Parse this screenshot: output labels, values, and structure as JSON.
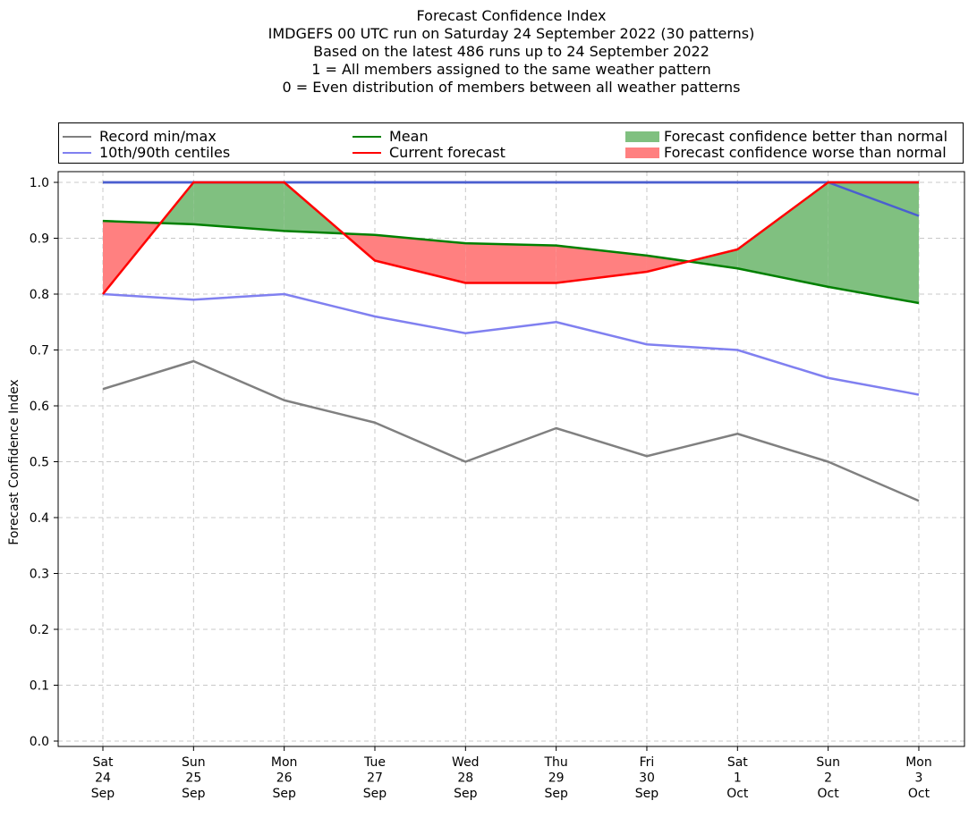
{
  "title_lines": [
    "Forecast Confidence Index",
    "IMDGEFS 00 UTC run on Saturday 24 September 2022 (30 patterns)",
    "Based on the latest 486 runs up to 24 September 2022",
    "1 = All members assigned to the same weather pattern",
    "0 = Even distribution of members between all weather patterns"
  ],
  "legend": {
    "record": "Record min/max",
    "centiles": "10th/90th centiles",
    "mean": "Mean",
    "current": "Current forecast",
    "better": "Forecast confidence better than normal",
    "worse": "Forecast confidence worse than normal"
  },
  "colors": {
    "record": "#808080",
    "centiles": "#8080f0",
    "centile90": "#4a5fd0",
    "mean": "#008000",
    "current": "#ff0000",
    "better": "#80c080",
    "worse": "#ff8080",
    "grid": "#c8c8c8"
  },
  "chart_data": {
    "type": "line",
    "title": "Forecast Confidence Index",
    "ylabel": "Forecast Confidence Index",
    "xlabel": "",
    "ylim": [
      0.0,
      1.0
    ],
    "yticks": [
      "0.0",
      "0.1",
      "0.2",
      "0.3",
      "0.4",
      "0.5",
      "0.6",
      "0.7",
      "0.8",
      "0.9",
      "1.0"
    ],
    "categories": [
      [
        "Sat",
        "24",
        "Sep"
      ],
      [
        "Sun",
        "25",
        "Sep"
      ],
      [
        "Mon",
        "26",
        "Sep"
      ],
      [
        "Tue",
        "27",
        "Sep"
      ],
      [
        "Wed",
        "28",
        "Sep"
      ],
      [
        "Thu",
        "29",
        "Sep"
      ],
      [
        "Fri",
        "30",
        "Sep"
      ],
      [
        "Sat",
        "1",
        "Oct"
      ],
      [
        "Sun",
        "2",
        "Oct"
      ],
      [
        "Mon",
        "3",
        "Oct"
      ]
    ],
    "grid": true,
    "legend_position": "top",
    "series": {
      "record_max": [
        1.0,
        1.0,
        1.0,
        1.0,
        1.0,
        1.0,
        1.0,
        1.0,
        1.0,
        1.0
      ],
      "record_min": [
        0.63,
        0.68,
        0.61,
        0.57,
        0.5,
        0.56,
        0.51,
        0.55,
        0.5,
        0.43
      ],
      "centile_90": [
        1.0,
        1.0,
        1.0,
        1.0,
        1.0,
        1.0,
        1.0,
        1.0,
        1.0,
        0.94
      ],
      "centile_10": [
        0.8,
        0.79,
        0.8,
        0.76,
        0.73,
        0.75,
        0.71,
        0.7,
        0.65,
        0.62
      ],
      "mean": [
        0.931,
        0.925,
        0.913,
        0.906,
        0.891,
        0.887,
        0.869,
        0.846,
        0.813,
        0.784
      ],
      "current": [
        0.8,
        1.0,
        1.0,
        0.86,
        0.82,
        0.82,
        0.84,
        0.88,
        1.0,
        1.0
      ]
    }
  }
}
